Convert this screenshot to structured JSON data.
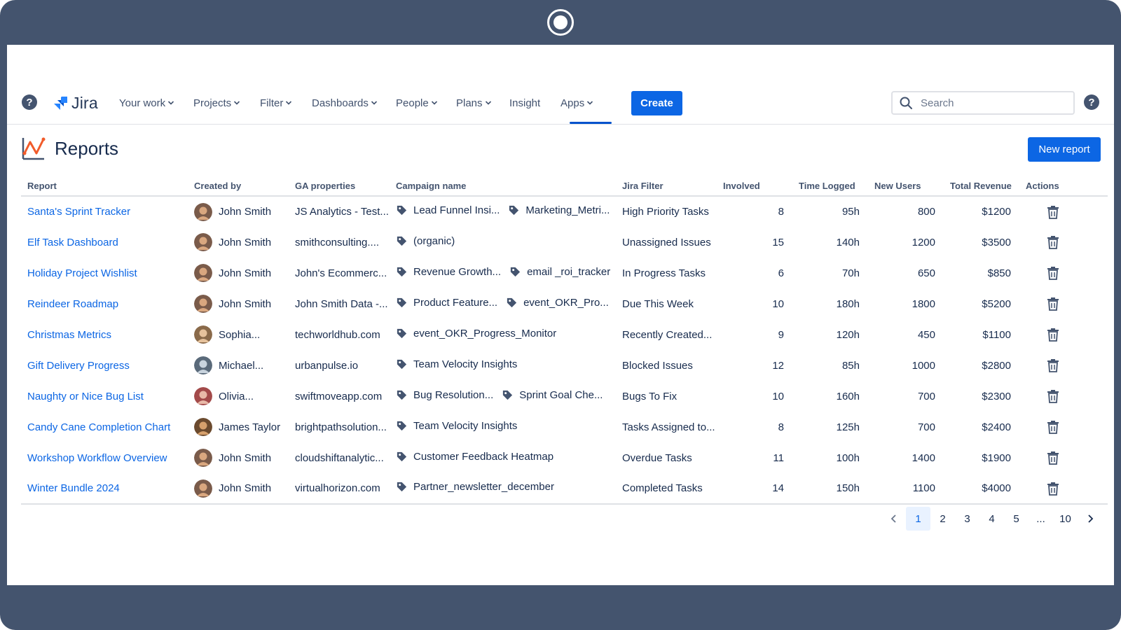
{
  "app": {
    "name": "Jira"
  },
  "nav": {
    "items": [
      {
        "label": "Your work",
        "dropdown": true
      },
      {
        "label": "Projects",
        "dropdown": true
      },
      {
        "label": "Filter",
        "dropdown": true
      },
      {
        "label": "Dashboards",
        "dropdown": true
      },
      {
        "label": "People",
        "dropdown": true
      },
      {
        "label": "Plans",
        "dropdown": true
      },
      {
        "label": "Insight",
        "dropdown": false
      },
      {
        "label": "Apps",
        "dropdown": true,
        "active": true
      }
    ],
    "create_label": "Create",
    "search_placeholder": "Search"
  },
  "page": {
    "title": "Reports",
    "new_report_label": "New report"
  },
  "table": {
    "headers": {
      "report": "Report",
      "created_by": "Created by",
      "ga_properties": "GA properties",
      "campaign": "Campaign name",
      "jira_filter": "Jira Filter",
      "involved": "Involved",
      "time_logged": "Time Logged",
      "new_users": "New Users",
      "total_revenue": "Total Revenue",
      "actions": "Actions"
    },
    "rows": [
      {
        "report": "Santa's Sprint Tracker",
        "creator": "John Smith",
        "ga": "JS Analytics - Test...",
        "campaigns": [
          "Lead Funnel Insi...",
          "Marketing_Metri..."
        ],
        "filter": "High Priority Tasks",
        "involved": "8",
        "time": "95h",
        "users": "800",
        "revenue": "$1200"
      },
      {
        "report": "Elf Task Dashboard",
        "creator": "John Smith",
        "ga": "smithconsulting....",
        "campaigns": [
          "(organic)"
        ],
        "filter": "Unassigned Issues",
        "involved": "15",
        "time": "140h",
        "users": "1200",
        "revenue": "$3500"
      },
      {
        "report": "Holiday Project Wishlist",
        "creator": "John Smith",
        "ga": "John's Ecommerc...",
        "campaigns": [
          "Revenue Growth...",
          "email _roi_tracker"
        ],
        "filter": "In Progress Tasks",
        "involved": "6",
        "time": "70h",
        "users": "650",
        "revenue": "$850"
      },
      {
        "report": "Reindeer Roadmap",
        "creator": "John Smith",
        "ga": "John Smith Data -...",
        "campaigns": [
          "Product Feature...",
          "event_OKR_Pro..."
        ],
        "filter": "Due This Week",
        "involved": "10",
        "time": "180h",
        "users": "1800",
        "revenue": "$5200"
      },
      {
        "report": "Christmas Metrics",
        "creator": "Sophia...",
        "ga": "techworldhub.com",
        "campaigns": [
          "event_OKR_Progress_Monitor"
        ],
        "filter": "Recently Created...",
        "involved": "9",
        "time": "120h",
        "users": "450",
        "revenue": "$1100"
      },
      {
        "report": "Gift Delivery Progress",
        "creator": "Michael...",
        "ga": "urbanpulse.io",
        "campaigns": [
          "Team Velocity Insights"
        ],
        "filter": "Blocked Issues",
        "involved": "12",
        "time": "85h",
        "users": "1000",
        "revenue": "$2800"
      },
      {
        "report": "Naughty or Nice Bug List",
        "creator": "Olivia...",
        "ga": "swiftmoveapp.com",
        "campaigns": [
          "Bug Resolution...",
          "Sprint Goal Che..."
        ],
        "filter": "Bugs To Fix",
        "involved": "10",
        "time": "160h",
        "users": "700",
        "revenue": "$2300"
      },
      {
        "report": "Candy Cane Completion Chart",
        "creator": "James Taylor",
        "ga": "brightpathsolution...",
        "campaigns": [
          "Team Velocity Insights"
        ],
        "filter": "Tasks Assigned to...",
        "involved": "8",
        "time": "125h",
        "users": "700",
        "revenue": "$2400"
      },
      {
        "report": "Workshop Workflow Overview",
        "creator": "John Smith",
        "ga": "cloudshiftanalytic...",
        "campaigns": [
          "Customer Feedback Heatmap"
        ],
        "filter": "Overdue Tasks",
        "involved": "11",
        "time": "100h",
        "users": "1400",
        "revenue": "$1900"
      },
      {
        "report": "Winter Bundle 2024",
        "creator": "John Smith",
        "ga": "virtualhorizon.com",
        "campaigns": [
          "Partner_newsletter_december"
        ],
        "filter": "Completed Tasks",
        "involved": "14",
        "time": "150h",
        "users": "1100",
        "revenue": "$4000"
      }
    ]
  },
  "pagination": {
    "pages": [
      "1",
      "2",
      "3",
      "4",
      "5",
      "...",
      "10"
    ],
    "current": "1"
  },
  "colors": {
    "frame": "#44546e",
    "primary": "#0c66e4",
    "link": "#0c66e4",
    "text": "#172b4d"
  }
}
